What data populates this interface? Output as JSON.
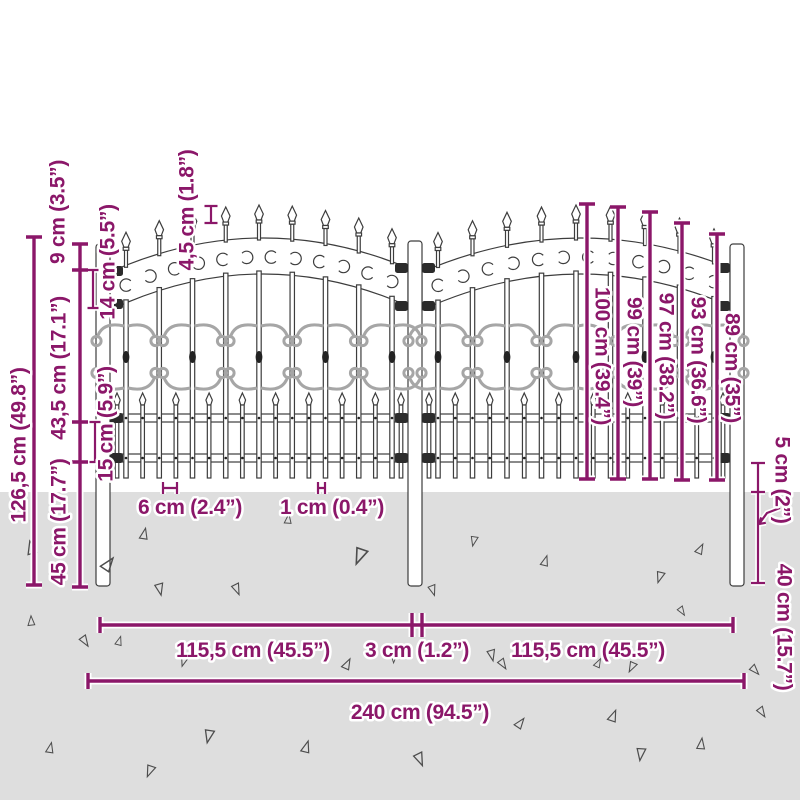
{
  "diagram_type": "fence-dimension-diagram",
  "colors": {
    "accent": "#8b1769",
    "ground": "#dedede",
    "outline": "#3d3d3d",
    "scroll_gray": "#a6a6a6"
  },
  "labels": {
    "height_total": "126,5 cm (49.8”)",
    "height_top": "9 cm (3.5”)",
    "height_mid": "43,5 cm (17.1”)",
    "height_bottom": "45 cm (17.7”)",
    "band_offset": "14 cm (5.5”)",
    "rail_gap": "15 cm (5.9”)",
    "spear_size": "4,5 cm (1.8”)",
    "picket_heights": [
      "100 cm (39.4”)",
      "99 cm (39”)",
      "97 cm (38.2”)",
      "93 cm (36.6”)",
      "89 cm (35”)"
    ],
    "ground_clearance": "5 cm (2”)",
    "post_depth": "40 cm (15.7”)",
    "picket_gap": "6 cm (2.4”)",
    "picket_width": "1 cm (0.4”)",
    "panel_width_left": "115,5 cm (45.5”)",
    "post_width": "3 cm (1.2”)",
    "panel_width_right": "115,5 cm (45.5”)",
    "total_width": "240 cm (94.5”)"
  }
}
